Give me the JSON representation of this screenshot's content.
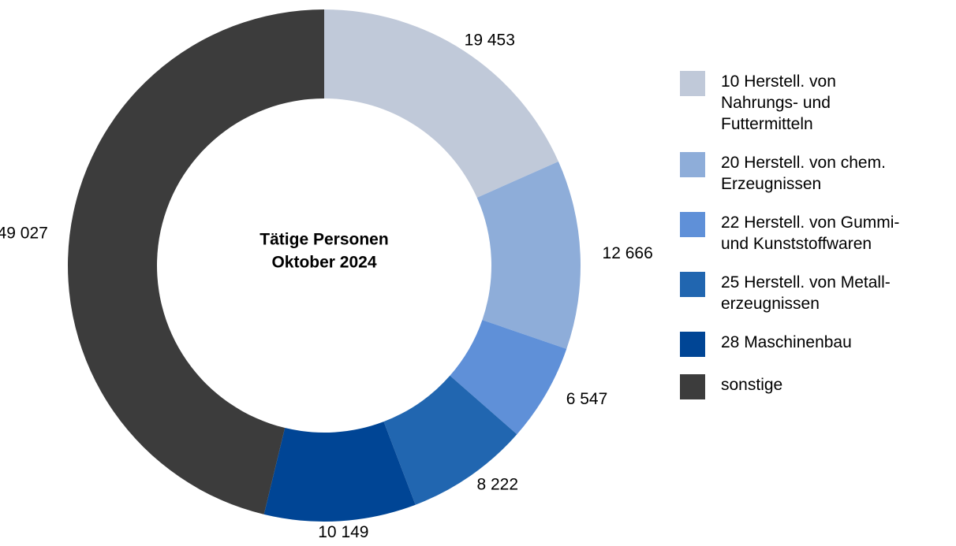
{
  "chart_data": {
    "type": "donut",
    "center_text": [
      "Tätige Personen",
      "Oktober 2024"
    ],
    "categories": [
      "10 Herstell. von Nahrungs- und Futtermitteln",
      "20 Herstell. von chem. Erzeugnissen",
      "22 Herstell. von Gummi- und Kunststoffwaren",
      "25 Herstell. von Metall-erzeugnissen",
      "28 Maschinenbau",
      "sonstige"
    ],
    "values": [
      19453,
      12666,
      6547,
      8222,
      10149,
      49027
    ],
    "value_labels": [
      "19 453",
      "12 666",
      "6 547",
      "8 222",
      "10 149",
      "49 027"
    ],
    "colors": [
      "#c0c9d9",
      "#8eadd9",
      "#5f90d8",
      "#2166b0",
      "#004595",
      "#3c3c3c"
    ],
    "legend": "right"
  }
}
